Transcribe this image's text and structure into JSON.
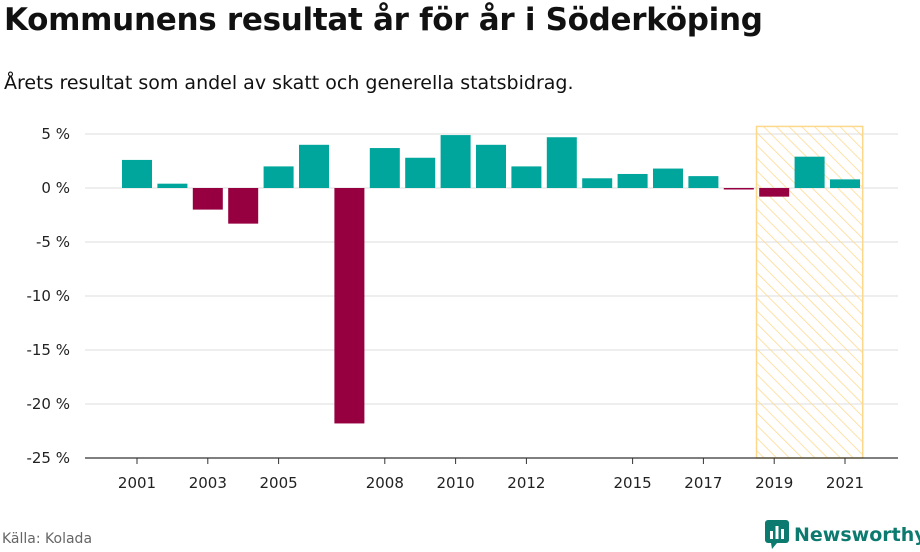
{
  "title": "Kommunens resultat år för år i Söderköping",
  "subtitle": "Årets resultat som andel av skatt och generella statsbidrag.",
  "source": "Källa: Kolada",
  "brand": "Newsworthy",
  "colors": {
    "positive": "#00a59c",
    "negative": "#960040",
    "highlight": "#fdd88b",
    "grid": "#dddddd",
    "brand": "#0d7a6f"
  },
  "chart_data": {
    "type": "bar",
    "x": [
      2001,
      2002,
      2003,
      2004,
      2005,
      2006,
      2007,
      2008,
      2009,
      2010,
      2011,
      2012,
      2013,
      2014,
      2015,
      2016,
      2017,
      2018,
      2019,
      2020,
      2021
    ],
    "values": [
      2.6,
      0.4,
      -2.0,
      -3.3,
      2.0,
      4.0,
      -21.8,
      3.7,
      2.8,
      4.9,
      4.0,
      2.0,
      4.7,
      0.9,
      1.3,
      1.8,
      1.1,
      -0.1,
      -0.8,
      2.9,
      0.8
    ],
    "y_ticks": [
      5,
      0,
      -5,
      -10,
      -15,
      -20,
      -25
    ],
    "y_tick_labels": [
      "5 %",
      "0 %",
      "-5 %",
      "-10 %",
      "-15 %",
      "-20 %",
      "-25 %"
    ],
    "x_tick_labels": [
      "2001",
      "2003",
      "2005",
      "2008",
      "2010",
      "2012",
      "2015",
      "2017",
      "2019",
      "2021"
    ],
    "ylim": [
      -25,
      5.7
    ],
    "highlight_range": [
      2019,
      2021
    ],
    "grid": true,
    "legend": "none"
  }
}
